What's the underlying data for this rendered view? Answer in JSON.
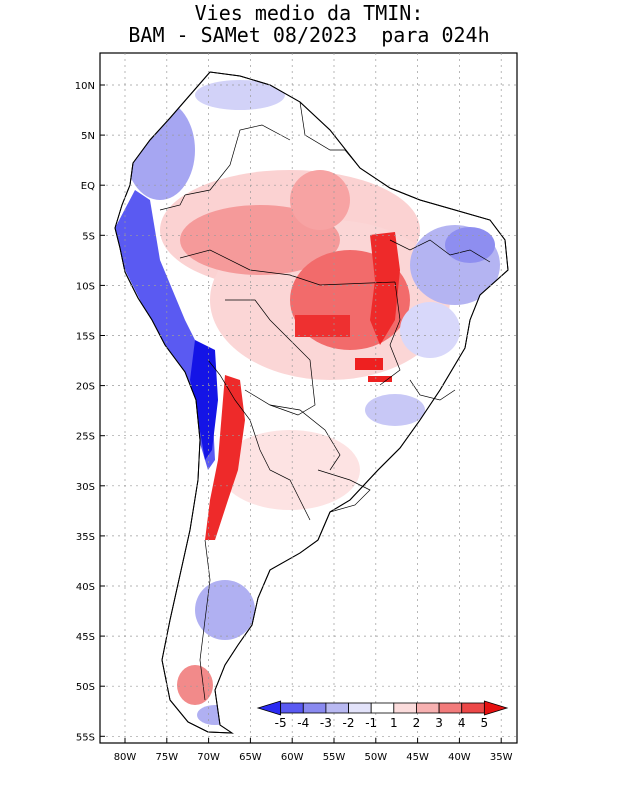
{
  "title": {
    "line1": "Vies medio da TMIN:",
    "line2": "BAM - SAMet 08/2023  para 024h"
  },
  "lat_ticks": [
    "10N",
    "5N",
    "EQ",
    "5S",
    "10S",
    "15S",
    "20S",
    "25S",
    "30S",
    "35S",
    "40S",
    "45S",
    "50S",
    "55S"
  ],
  "lon_ticks": [
    "80W",
    "75W",
    "70W",
    "65W",
    "60W",
    "55W",
    "50W",
    "45W",
    "40W",
    "35W"
  ],
  "colorbar": {
    "labels": [
      "-5",
      "-4",
      "-3",
      "-2",
      "-1",
      "1",
      "2",
      "3",
      "4",
      "5"
    ],
    "colors": [
      "#2b2bf2",
      "#5a5af2",
      "#8a8af0",
      "#b9b9f2",
      "#e3e3fa",
      "#ffffff",
      "#fbdcdc",
      "#f7b1b1",
      "#f27b7b",
      "#ec4848",
      "#e61010"
    ]
  },
  "colors": {
    "land_outline": "#000000",
    "grid": "#9a9a9a",
    "strong_warm": "#f02020",
    "warm": "#f58a8a",
    "light_warm": "#fbd2d2",
    "cool": "#8a8aef",
    "strong_cool": "#1414e6"
  }
}
